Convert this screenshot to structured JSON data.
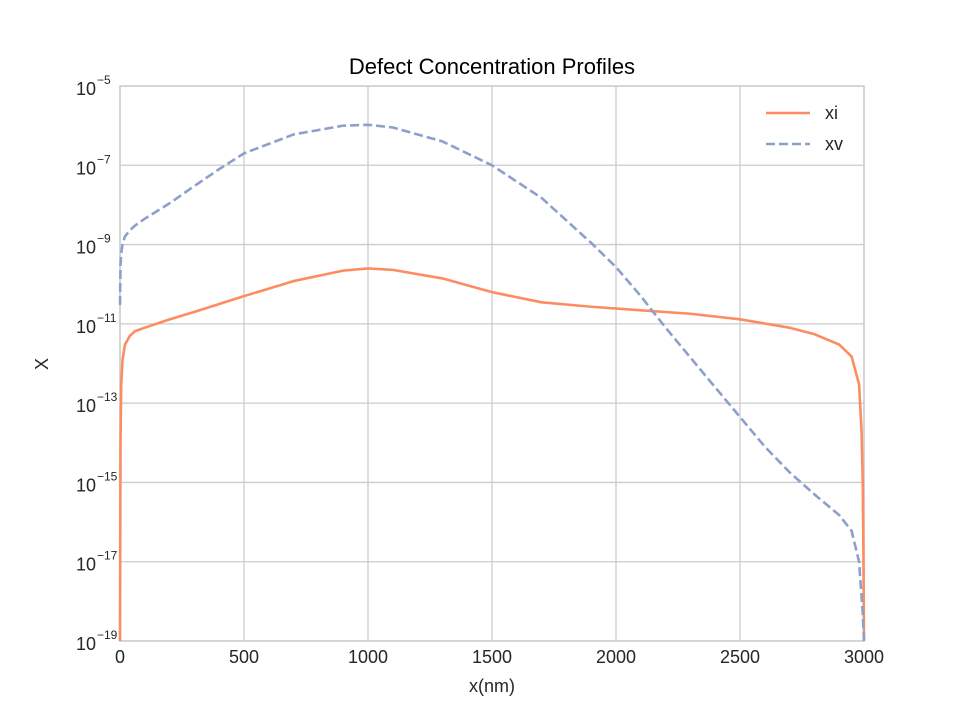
{
  "chart_data": {
    "type": "line",
    "title": "Defect Concentration Profiles",
    "xlabel": "x(nm)",
    "ylabel": "X",
    "xlim": [
      0,
      3000
    ],
    "ylim": [
      1e-19,
      1e-05
    ],
    "yscale": "log",
    "grid": true,
    "legend_position": "top-right",
    "x_ticks": [
      0,
      500,
      1000,
      1500,
      2000,
      2500,
      3000
    ],
    "y_ticks": [
      {
        "base": "10",
        "exp": "−19",
        "value": 1e-19
      },
      {
        "base": "10",
        "exp": "−17",
        "value": 1e-17
      },
      {
        "base": "10",
        "exp": "−15",
        "value": 1e-15
      },
      {
        "base": "10",
        "exp": "−13",
        "value": 1e-13
      },
      {
        "base": "10",
        "exp": "−11",
        "value": 1e-11
      },
      {
        "base": "10",
        "exp": "−9",
        "value": 1e-09
      },
      {
        "base": "10",
        "exp": "−7",
        "value": 1e-07
      },
      {
        "base": "10",
        "exp": "−5",
        "value": 1e-05
      }
    ],
    "series": [
      {
        "name": "xi",
        "color": "#fc8d62",
        "dash": "solid",
        "x": [
          0,
          2,
          5,
          10,
          20,
          40,
          60,
          100,
          200,
          300,
          500,
          700,
          900,
          1000,
          1100,
          1300,
          1500,
          1700,
          1900,
          2100,
          2300,
          2500,
          2700,
          2800,
          2900,
          2950,
          2980,
          2990,
          2995,
          2998,
          3000
        ],
        "y": [
          1e-19,
          1e-14,
          3e-13,
          1.2e-12,
          3e-12,
          5e-12,
          6.5e-12,
          8e-12,
          1.3e-11,
          2e-11,
          5e-11,
          1.2e-10,
          2.2e-10,
          2.5e-10,
          2.3e-10,
          1.4e-10,
          6.3e-11,
          3.5e-11,
          2.7e-11,
          2.2e-11,
          1.8e-11,
          1.3e-11,
          8e-12,
          5.5e-12,
          3e-12,
          1.5e-12,
          3e-13,
          2e-14,
          1e-15,
          1e-17,
          1e-19
        ]
      },
      {
        "name": "xv",
        "color": "#8da0cb",
        "dash": "dashed",
        "x": [
          0,
          2,
          5,
          10,
          20,
          40,
          60,
          100,
          200,
          300,
          400,
          500,
          700,
          900,
          1000,
          1100,
          1300,
          1500,
          1700,
          1900,
          2000,
          2100,
          2200,
          2400,
          2600,
          2700,
          2800,
          2900,
          2950,
          2980,
          2995,
          3000
        ],
        "y": [
          3e-11,
          3e-10,
          6e-10,
          1e-09,
          1.6e-09,
          2.3e-09,
          3e-09,
          4.5e-09,
          1.1e-08,
          3e-08,
          8e-08,
          2e-07,
          6e-07,
          1e-06,
          1.05e-06,
          9e-07,
          4e-07,
          1e-07,
          1.5e-08,
          1.1e-09,
          2.7e-10,
          5e-11,
          8e-12,
          2.5e-13,
          8e-15,
          1.8e-15,
          5e-16,
          1.5e-16,
          6e-17,
          1e-17,
          5e-19,
          1e-19
        ]
      }
    ]
  }
}
